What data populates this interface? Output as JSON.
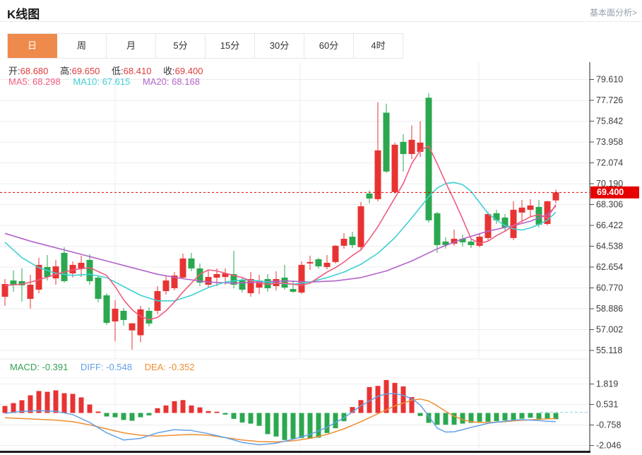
{
  "header": {
    "title": "K线图",
    "link": "基本面分析>"
  },
  "tabs": [
    {
      "label": "日",
      "active": true
    },
    {
      "label": "周",
      "active": false
    },
    {
      "label": "月",
      "active": false
    },
    {
      "label": "5分",
      "active": false
    },
    {
      "label": "15分",
      "active": false
    },
    {
      "label": "30分",
      "active": false
    },
    {
      "label": "60分",
      "active": false
    },
    {
      "label": "4时",
      "active": false
    }
  ],
  "quote": {
    "open_label": "开:",
    "open": "68.680",
    "high_label": "高:",
    "high": "69.650",
    "low_label": "低:",
    "low": "68.410",
    "close_label": "收:",
    "close": "69.400"
  },
  "ma_info": {
    "ma5_label": "MA5:",
    "ma5": "68.298",
    "ma10_label": "MA10:",
    "ma10": "67.615",
    "ma20_label": "MA20:",
    "ma20": "68.168"
  },
  "macd_info": {
    "macd_label": "MACD:",
    "macd": "-0.391",
    "diff_label": "DIFF:",
    "diff": "-0.548",
    "dea_label": "DEA:",
    "dea": "-0.352"
  },
  "price_marker": {
    "value": "69.400"
  },
  "colors": {
    "up": "#e83333",
    "down": "#2ba84f",
    "ma5": "#ef5b7f",
    "ma10": "#3fd0d4",
    "ma20": "#b264c8",
    "diff": "#63a0e8",
    "dea": "#ef8e31",
    "grid": "#ececf0",
    "axis_text": "#3c3c3c",
    "spine": "#4a4a4a",
    "price_line": "#dd0000",
    "badge_bg": "#e60000",
    "badge_text": "#ffffff",
    "tab_active": "#ef8a4d"
  },
  "chart_data": {
    "type": "candlestick",
    "title": "K线图 (daily K-line with MA5/MA10/MA20 and MACD)",
    "main": {
      "y_ticks": [
        79.61,
        77.726,
        75.842,
        73.958,
        72.074,
        70.19,
        68.306,
        66.422,
        64.538,
        62.654,
        60.77,
        58.886,
        57.002,
        55.118
      ],
      "last_price": 69.4,
      "candles": [
        [
          59.97,
          61.57,
          59.14,
          61.12
        ],
        [
          61.44,
          62.34,
          60.42,
          61.06
        ],
        [
          61.38,
          62.53,
          59.53,
          61.0
        ],
        [
          59.78,
          61.95,
          58.89,
          61.06
        ],
        [
          60.61,
          63.49,
          60.29,
          62.85
        ],
        [
          62.66,
          63.74,
          61.44,
          61.76
        ],
        [
          61.63,
          63.3,
          61.06,
          62.72
        ],
        [
          63.94,
          64.45,
          61.25,
          61.38
        ],
        [
          62.08,
          63.17,
          61.7,
          62.85
        ],
        [
          62.53,
          63.68,
          61.76,
          63.04
        ],
        [
          63.3,
          63.81,
          61.06,
          61.38
        ],
        [
          61.7,
          61.89,
          59.46,
          59.78
        ],
        [
          60.1,
          60.29,
          57.42,
          57.61
        ],
        [
          57.74,
          59.65,
          55.95,
          58.89
        ],
        [
          58.7,
          58.95,
          57.36,
          57.87
        ],
        [
          56.93,
          57.42,
          55.18,
          57.57
        ],
        [
          56.49,
          59.14,
          55.86,
          58.83
        ],
        [
          58.7,
          59.02,
          57.29,
          57.55
        ],
        [
          58.7,
          60.93,
          58.38,
          60.48
        ],
        [
          60.48,
          61.89,
          60.16,
          61.44
        ],
        [
          60.74,
          62.21,
          60.55,
          61.89
        ],
        [
          61.7,
          63.87,
          61.57,
          63.43
        ],
        [
          63.43,
          63.94,
          62.27,
          62.53
        ],
        [
          62.53,
          62.98,
          60.93,
          61.25
        ],
        [
          61.06,
          62.4,
          60.8,
          61.76
        ],
        [
          61.7,
          62.53,
          60.93,
          62.02
        ],
        [
          61.76,
          62.53,
          61.06,
          62.08
        ],
        [
          62.02,
          64.13,
          60.74,
          61.06
        ],
        [
          61.44,
          61.7,
          60.35,
          60.61
        ],
        [
          60.29,
          62.21,
          59.97,
          61.57
        ],
        [
          60.8,
          61.95,
          60.23,
          61.44
        ],
        [
          61.57,
          62.02,
          60.42,
          60.74
        ],
        [
          60.93,
          62.27,
          60.55,
          61.57
        ],
        [
          61.7,
          62.85,
          60.61,
          60.8
        ],
        [
          60.67,
          61.44,
          60.35,
          60.42
        ],
        [
          60.35,
          63.17,
          60.23,
          62.85
        ],
        [
          62.98,
          63.68,
          62.4,
          63.11
        ],
        [
          63.36,
          63.49,
          62.53,
          62.72
        ],
        [
          62.66,
          63.74,
          62.46,
          63.04
        ],
        [
          63.11,
          64.64,
          62.98,
          64.58
        ],
        [
          64.58,
          65.72,
          64.32,
          65.21
        ],
        [
          65.4,
          65.85,
          64.38,
          64.64
        ],
        [
          64.45,
          68.54,
          64.13,
          68.15
        ],
        [
          69.3,
          69.56,
          68.41,
          68.85
        ],
        [
          68.79,
          77.55,
          68.6,
          73.2
        ],
        [
          76.61,
          77.42,
          71.16,
          71.29
        ],
        [
          69.43,
          73.9,
          69.3,
          73.71
        ],
        [
          73.97,
          74.67,
          71.29,
          72.87
        ],
        [
          72.87,
          75.45,
          72.42,
          74.16
        ],
        [
          73.07,
          75.82,
          72.61,
          73.9
        ],
        [
          77.96,
          78.38,
          66.68,
          66.88
        ],
        [
          67.52,
          67.64,
          63.94,
          64.64
        ],
        [
          64.96,
          65.34,
          64.32,
          64.64
        ],
        [
          64.77,
          66.04,
          64.58,
          65.21
        ],
        [
          65.21,
          65.59,
          64.51,
          64.89
        ],
        [
          64.96,
          65.28,
          64.38,
          64.64
        ],
        [
          64.58,
          65.72,
          64.45,
          65.4
        ],
        [
          65.28,
          67.64,
          65.09,
          67.45
        ],
        [
          67.52,
          67.83,
          66.55,
          66.88
        ],
        [
          67.13,
          67.45,
          65.92,
          66.24
        ],
        [
          65.28,
          68.6,
          65.09,
          67.83
        ],
        [
          67.58,
          68.73,
          66.68,
          68.03
        ],
        [
          67.83,
          68.79,
          67.2,
          68.22
        ],
        [
          68.09,
          68.73,
          66.24,
          66.49
        ],
        [
          66.55,
          68.66,
          66.43,
          68.6
        ],
        [
          68.68,
          69.65,
          68.41,
          69.4
        ]
      ],
      "ma5": [
        [
          0,
          61.0
        ],
        [
          2,
          61.1
        ],
        [
          4,
          61.5
        ],
        [
          6,
          62.0
        ],
        [
          8,
          62.4
        ],
        [
          10,
          62.6
        ],
        [
          12,
          61.9
        ],
        [
          13,
          60.9
        ],
        [
          14,
          59.7
        ],
        [
          15,
          58.8
        ],
        [
          16,
          58.2
        ],
        [
          17,
          57.9
        ],
        [
          18,
          58.1
        ],
        [
          19,
          58.7
        ],
        [
          20,
          59.5
        ],
        [
          21,
          60.4
        ],
        [
          22,
          61.2
        ],
        [
          23,
          62.0
        ],
        [
          24,
          62.4
        ],
        [
          25,
          62.3
        ],
        [
          26,
          62.1
        ],
        [
          27,
          61.9
        ],
        [
          28,
          61.7
        ],
        [
          29,
          61.4
        ],
        [
          30,
          61.2
        ],
        [
          31,
          61.1
        ],
        [
          32,
          61.2
        ],
        [
          33,
          61.2
        ],
        [
          34,
          61.1
        ],
        [
          35,
          61.0
        ],
        [
          36,
          61.2
        ],
        [
          37,
          61.7
        ],
        [
          38,
          62.2
        ],
        [
          39,
          62.6
        ],
        [
          40,
          63.1
        ],
        [
          41,
          63.7
        ],
        [
          42,
          64.2
        ],
        [
          43,
          65.2
        ],
        [
          44,
          66.3
        ],
        [
          45,
          67.6
        ],
        [
          46,
          68.9
        ],
        [
          47,
          70.2
        ],
        [
          48,
          72.0
        ],
        [
          49,
          73.2
        ],
        [
          50,
          73.6
        ],
        [
          51,
          72.0
        ],
        [
          52,
          70.3
        ],
        [
          53,
          68.7
        ],
        [
          54,
          67.0
        ],
        [
          55,
          65.2
        ],
        [
          56,
          64.8
        ],
        [
          57,
          65.0
        ],
        [
          58,
          65.5
        ],
        [
          59,
          65.9
        ],
        [
          60,
          66.4
        ],
        [
          61,
          66.8
        ],
        [
          62,
          67.2
        ],
        [
          63,
          67.4
        ],
        [
          64,
          67.1
        ],
        [
          65,
          68.298
        ]
      ],
      "ma10": [
        [
          0,
          64.9
        ],
        [
          2,
          63.5
        ],
        [
          4,
          62.6
        ],
        [
          6,
          62.1
        ],
        [
          8,
          61.9
        ],
        [
          10,
          62.0
        ],
        [
          12,
          61.7
        ],
        [
          14,
          60.9
        ],
        [
          16,
          60.1
        ],
        [
          18,
          59.6
        ],
        [
          20,
          59.6
        ],
        [
          22,
          60.1
        ],
        [
          24,
          60.8
        ],
        [
          26,
          61.3
        ],
        [
          28,
          61.5
        ],
        [
          30,
          61.4
        ],
        [
          32,
          61.2
        ],
        [
          34,
          61.1
        ],
        [
          36,
          61.3
        ],
        [
          38,
          61.7
        ],
        [
          40,
          62.2
        ],
        [
          42,
          62.9
        ],
        [
          44,
          63.9
        ],
        [
          46,
          65.3
        ],
        [
          48,
          67.1
        ],
        [
          50,
          69.0
        ],
        [
          51,
          69.8
        ],
        [
          52,
          70.2
        ],
        [
          53,
          70.3
        ],
        [
          54,
          70.1
        ],
        [
          55,
          69.5
        ],
        [
          56,
          68.5
        ],
        [
          57,
          67.5
        ],
        [
          58,
          66.9
        ],
        [
          59,
          66.4
        ],
        [
          60,
          66.1
        ],
        [
          61,
          66.0
        ],
        [
          62,
          66.2
        ],
        [
          63,
          66.5
        ],
        [
          64,
          66.9
        ],
        [
          65,
          67.615
        ]
      ],
      "ma20": [
        [
          0,
          65.7
        ],
        [
          3,
          65.0
        ],
        [
          6,
          64.4
        ],
        [
          9,
          63.8
        ],
        [
          12,
          63.2
        ],
        [
          15,
          62.6
        ],
        [
          18,
          62.0
        ],
        [
          21,
          61.6
        ],
        [
          24,
          61.3
        ],
        [
          27,
          61.2
        ],
        [
          30,
          61.3
        ],
        [
          33,
          61.4
        ],
        [
          36,
          61.3
        ],
        [
          39,
          61.4
        ],
        [
          42,
          61.7
        ],
        [
          45,
          62.3
        ],
        [
          48,
          63.2
        ],
        [
          51,
          64.3
        ],
        [
          54,
          65.2
        ],
        [
          57,
          65.9
        ],
        [
          60,
          66.4
        ],
        [
          62,
          66.8
        ],
        [
          64,
          67.4
        ],
        [
          65,
          68.168
        ]
      ]
    },
    "macd": {
      "y_ticks": [
        1.819,
        0.531,
        -0.758,
        -2.046
      ],
      "histogram": [
        0.44,
        0.62,
        0.8,
        1.11,
        1.38,
        1.33,
        1.42,
        1.24,
        1.2,
        0.98,
        0.53,
        0.09,
        -0.22,
        -0.27,
        -0.44,
        -0.49,
        -0.27,
        -0.15,
        0.3,
        0.47,
        0.74,
        0.81,
        0.47,
        0.35,
        0.12,
        0.08,
        -0.1,
        -0.37,
        -0.6,
        -0.67,
        -0.81,
        -1.33,
        -1.48,
        -1.7,
        -1.63,
        -1.58,
        -1.62,
        -1.55,
        -1.26,
        -0.96,
        -0.52,
        0.37,
        0.81,
        1.63,
        1.7,
        2.07,
        1.89,
        1.67,
        1.0,
        -0.19,
        -0.62,
        -0.74,
        -0.74,
        -0.74,
        -0.67,
        -0.62,
        -0.55,
        -0.55,
        -0.52,
        -0.47,
        -0.44,
        -0.36,
        -0.3,
        -0.37,
        -0.4,
        -0.391
      ],
      "diff": [
        [
          0,
          -0.02
        ],
        [
          2,
          0.1
        ],
        [
          4,
          0.15
        ],
        [
          6,
          0.1
        ],
        [
          8,
          -0.1
        ],
        [
          10,
          -0.6
        ],
        [
          12,
          -1.25
        ],
        [
          14,
          -1.7
        ],
        [
          16,
          -1.6
        ],
        [
          18,
          -1.25
        ],
        [
          20,
          -1.05
        ],
        [
          22,
          -1.1
        ],
        [
          24,
          -1.3
        ],
        [
          26,
          -1.55
        ],
        [
          28,
          -1.85
        ],
        [
          30,
          -2.0
        ],
        [
          32,
          -1.9
        ],
        [
          34,
          -1.65
        ],
        [
          36,
          -1.35
        ],
        [
          38,
          -0.9
        ],
        [
          40,
          -0.3
        ],
        [
          42,
          0.45
        ],
        [
          44,
          1.05
        ],
        [
          45,
          1.2
        ],
        [
          46,
          1.22
        ],
        [
          47,
          1.1
        ],
        [
          48,
          0.9
        ],
        [
          49,
          0.5
        ],
        [
          50,
          -0.2
        ],
        [
          51,
          -0.95
        ],
        [
          52,
          -1.2
        ],
        [
          53,
          -1.18
        ],
        [
          54,
          -1.05
        ],
        [
          55,
          -0.9
        ],
        [
          56,
          -0.78
        ],
        [
          57,
          -0.65
        ],
        [
          58,
          -0.58
        ],
        [
          59,
          -0.52
        ],
        [
          60,
          -0.45
        ],
        [
          61,
          -0.42
        ],
        [
          62,
          -0.45
        ],
        [
          63,
          -0.48
        ],
        [
          64,
          -0.52
        ],
        [
          65,
          -0.548
        ]
      ],
      "dea": [
        [
          0,
          -0.3
        ],
        [
          2,
          -0.35
        ],
        [
          4,
          -0.4
        ],
        [
          6,
          -0.45
        ],
        [
          8,
          -0.55
        ],
        [
          10,
          -0.75
        ],
        [
          12,
          -1.0
        ],
        [
          14,
          -1.25
        ],
        [
          16,
          -1.4
        ],
        [
          18,
          -1.45
        ],
        [
          20,
          -1.4
        ],
        [
          22,
          -1.35
        ],
        [
          24,
          -1.4
        ],
        [
          26,
          -1.55
        ],
        [
          28,
          -1.7
        ],
        [
          30,
          -1.8
        ],
        [
          32,
          -1.82
        ],
        [
          34,
          -1.75
        ],
        [
          36,
          -1.6
        ],
        [
          38,
          -1.35
        ],
        [
          40,
          -1.0
        ],
        [
          42,
          -0.55
        ],
        [
          44,
          -0.05
        ],
        [
          46,
          0.45
        ],
        [
          48,
          0.8
        ],
        [
          49,
          0.88
        ],
        [
          50,
          0.75
        ],
        [
          51,
          0.45
        ],
        [
          52,
          0.1
        ],
        [
          53,
          -0.2
        ],
        [
          54,
          -0.42
        ],
        [
          55,
          -0.55
        ],
        [
          56,
          -0.6
        ],
        [
          57,
          -0.6
        ],
        [
          58,
          -0.58
        ],
        [
          59,
          -0.55
        ],
        [
          60,
          -0.5
        ],
        [
          61,
          -0.46
        ],
        [
          62,
          -0.43
        ],
        [
          63,
          -0.4
        ],
        [
          64,
          -0.37
        ],
        [
          65,
          -0.352
        ]
      ]
    }
  }
}
